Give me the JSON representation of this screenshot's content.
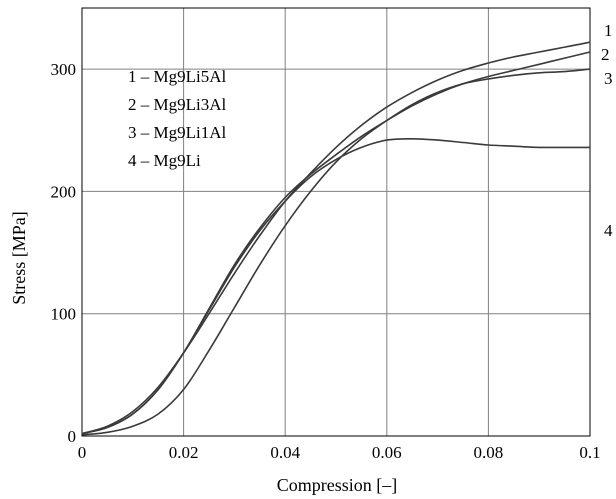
{
  "chart_data": {
    "type": "line",
    "title": "",
    "xlabel": "Compression [–]",
    "ylabel": "Stress [MPa]",
    "xlim": [
      0,
      0.1
    ],
    "ylim": [
      0,
      350
    ],
    "xticks": [
      0,
      0.02,
      0.04,
      0.06,
      0.08,
      0.1
    ],
    "xtick_labels": [
      "0",
      "0.02",
      "0.04",
      "0.06",
      "0.08",
      "0.1"
    ],
    "yticks": [
      0,
      100,
      200,
      300
    ],
    "ytick_labels": [
      "0",
      "100",
      "200",
      "300"
    ],
    "grid": true,
    "legend": {
      "placement": "top-left",
      "entries": [
        "1 – Mg9Li5Al",
        "2 – Mg9Li3Al",
        "3 – Mg9Li1Al",
        "4 – Mg9Li"
      ]
    },
    "series": [
      {
        "name": "1",
        "x": [
          0,
          0.005,
          0.01,
          0.015,
          0.02,
          0.025,
          0.03,
          0.035,
          0.04,
          0.045,
          0.05,
          0.055,
          0.06,
          0.065,
          0.07,
          0.075,
          0.08,
          0.085,
          0.09,
          0.095,
          0.1
        ],
        "y": [
          2,
          8,
          20,
          40,
          68,
          100,
          133,
          164,
          192,
          215,
          236,
          254,
          269,
          281,
          291,
          299,
          305,
          310,
          314,
          318,
          322
        ]
      },
      {
        "name": "2",
        "x": [
          0,
          0.005,
          0.01,
          0.015,
          0.02,
          0.025,
          0.03,
          0.035,
          0.04,
          0.045,
          0.05,
          0.055,
          0.06,
          0.065,
          0.07,
          0.075,
          0.08,
          0.085,
          0.09,
          0.095,
          0.1
        ],
        "y": [
          2,
          7,
          18,
          38,
          68,
          104,
          140,
          170,
          195,
          214,
          230,
          245,
          258,
          270,
          280,
          288,
          294,
          299,
          304,
          309,
          314
        ]
      },
      {
        "name": "3",
        "x": [
          0,
          0.005,
          0.01,
          0.015,
          0.02,
          0.025,
          0.03,
          0.035,
          0.04,
          0.045,
          0.05,
          0.055,
          0.06,
          0.065,
          0.07,
          0.075,
          0.08,
          0.085,
          0.09,
          0.095,
          0.1
        ],
        "y": [
          1,
          3,
          8,
          18,
          38,
          70,
          105,
          140,
          172,
          200,
          224,
          243,
          258,
          271,
          281,
          288,
          292,
          295,
          297,
          298,
          300
        ]
      },
      {
        "name": "4",
        "x": [
          0,
          0.005,
          0.01,
          0.015,
          0.02,
          0.025,
          0.03,
          0.035,
          0.04,
          0.045,
          0.05,
          0.055,
          0.06,
          0.065,
          0.07,
          0.075,
          0.08,
          0.085,
          0.09,
          0.095,
          0.1
        ],
        "y": [
          2,
          7,
          18,
          38,
          68,
          103,
          138,
          168,
          192,
          212,
          226,
          236,
          242,
          243,
          242,
          240,
          238,
          237,
          236,
          236,
          236
        ]
      }
    ],
    "end_labels": [
      "1",
      "2",
      "3",
      "4"
    ]
  }
}
